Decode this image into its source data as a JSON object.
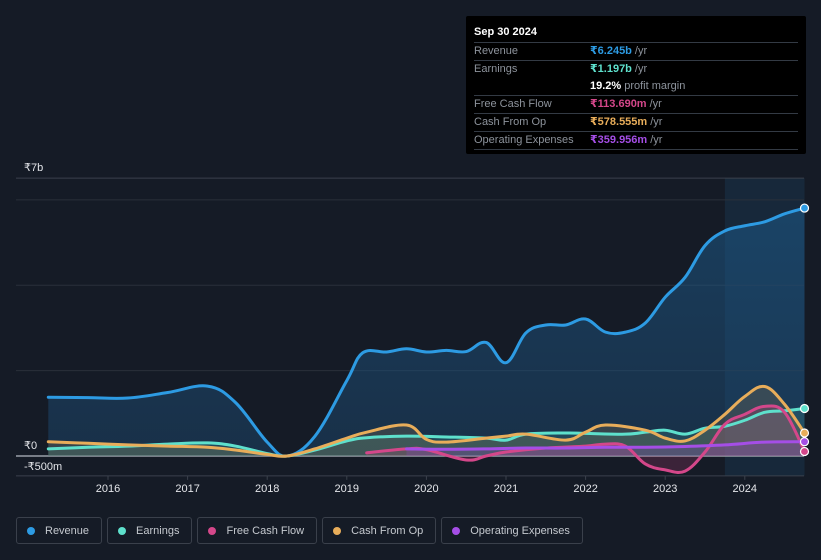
{
  "tooltip": {
    "date": "Sep 30 2024",
    "rows": [
      {
        "label": "Revenue",
        "value": "₹6.245b",
        "unit": "/yr",
        "color": "#2d9be3"
      },
      {
        "label": "Earnings",
        "value": "₹1.197b",
        "unit": "/yr",
        "color": "#5ee0cc"
      },
      {
        "label": "",
        "value": "19.2%",
        "unit": "profit margin",
        "color": "#ffffff"
      },
      {
        "label": "Free Cash Flow",
        "value": "₹113.690m",
        "unit": "/yr",
        "color": "#d4478a"
      },
      {
        "label": "Cash From Op",
        "value": "₹578.555m",
        "unit": "/yr",
        "color": "#e8ad5a"
      },
      {
        "label": "Operating Expenses",
        "value": "₹359.956m",
        "unit": "/yr",
        "color": "#a54ee6"
      }
    ]
  },
  "legend": [
    {
      "label": "Revenue",
      "color": "#2d9be3"
    },
    {
      "label": "Earnings",
      "color": "#5ee0cc"
    },
    {
      "label": "Free Cash Flow",
      "color": "#d4478a"
    },
    {
      "label": "Cash From Op",
      "color": "#e8ad5a"
    },
    {
      "label": "Operating Expenses",
      "color": "#a54ee6"
    }
  ],
  "chart_data": {
    "type": "area",
    "title": "",
    "xlabel": "",
    "ylabel": "",
    "units": "₹ billions",
    "ylim": [
      -0.5,
      7
    ],
    "xlim": [
      2015.25,
      2024.75
    ],
    "y_ticks": [
      {
        "value": 7,
        "label": "₹7b"
      },
      {
        "value": 0,
        "label": "₹0"
      },
      {
        "value": -0.5,
        "label": "-₹500m"
      }
    ],
    "x_ticks": [
      2016,
      2017,
      2018,
      2019,
      2020,
      2021,
      2022,
      2023,
      2024
    ],
    "grid": true,
    "highlight_start": 2023.75,
    "legend_position": "bottom",
    "series": [
      {
        "name": "Revenue",
        "color": "#2d9be3",
        "x": [
          2015.25,
          2015.75,
          2016.25,
          2016.75,
          2017.25,
          2017.6,
          2018.0,
          2018.25,
          2018.6,
          2019.0,
          2019.2,
          2019.5,
          2019.75,
          2020.0,
          2020.25,
          2020.5,
          2020.75,
          2021.0,
          2021.25,
          2021.5,
          2021.75,
          2022.0,
          2022.25,
          2022.5,
          2022.75,
          2023.0,
          2023.25,
          2023.5,
          2023.75,
          2024.0,
          2024.25,
          2024.5,
          2024.75
        ],
        "values": [
          1.48,
          1.47,
          1.46,
          1.6,
          1.76,
          1.35,
          0.35,
          0.0,
          0.5,
          1.9,
          2.6,
          2.62,
          2.7,
          2.62,
          2.66,
          2.63,
          2.86,
          2.35,
          3.1,
          3.3,
          3.3,
          3.45,
          3.12,
          3.12,
          3.35,
          4.0,
          4.5,
          5.3,
          5.67,
          5.8,
          5.9,
          6.1,
          6.245
        ]
      },
      {
        "name": "Earnings",
        "color": "#5ee0cc",
        "x": [
          2015.25,
          2015.75,
          2016.25,
          2016.75,
          2017.25,
          2017.6,
          2018.0,
          2018.25,
          2018.6,
          2019.0,
          2019.25,
          2019.75,
          2020.25,
          2020.75,
          2021.0,
          2021.25,
          2021.75,
          2022.0,
          2022.5,
          2022.75,
          2023.0,
          2023.25,
          2023.5,
          2023.75,
          2024.0,
          2024.25,
          2024.5,
          2024.75
        ],
        "values": [
          0.18,
          0.22,
          0.25,
          0.3,
          0.33,
          0.25,
          0.06,
          0.0,
          0.15,
          0.38,
          0.46,
          0.5,
          0.48,
          0.45,
          0.4,
          0.55,
          0.58,
          0.57,
          0.55,
          0.6,
          0.65,
          0.55,
          0.7,
          0.75,
          0.9,
          1.1,
          1.14,
          1.197
        ]
      },
      {
        "name": "Free Cash Flow",
        "color": "#d4478a",
        "x": [
          2019.25,
          2019.75,
          2020.0,
          2020.5,
          2020.75,
          2021.0,
          2021.5,
          2022.0,
          2022.25,
          2022.5,
          2022.75,
          2023.0,
          2023.25,
          2023.5,
          2023.75,
          2024.0,
          2024.25,
          2024.5,
          2024.75
        ],
        "values": [
          0.08,
          0.18,
          0.16,
          -0.1,
          0.0,
          0.1,
          0.2,
          0.25,
          0.3,
          0.25,
          -0.2,
          -0.35,
          -0.38,
          0.1,
          0.8,
          1.05,
          1.25,
          1.1,
          0.114
        ]
      },
      {
        "name": "Cash From Op",
        "color": "#e8ad5a",
        "x": [
          2015.25,
          2015.75,
          2016.25,
          2016.75,
          2017.25,
          2017.6,
          2018.0,
          2018.25,
          2018.6,
          2019.0,
          2019.25,
          2019.75,
          2020.0,
          2020.25,
          2020.75,
          2021.0,
          2021.25,
          2021.75,
          2022.0,
          2022.25,
          2022.75,
          2023.0,
          2023.25,
          2023.5,
          2023.75,
          2024.0,
          2024.25,
          2024.5,
          2024.75
        ],
        "values": [
          0.36,
          0.32,
          0.28,
          0.25,
          0.22,
          0.15,
          0.04,
          0.0,
          0.18,
          0.45,
          0.6,
          0.78,
          0.42,
          0.35,
          0.45,
          0.5,
          0.55,
          0.4,
          0.6,
          0.78,
          0.65,
          0.45,
          0.38,
          0.65,
          1.05,
          1.5,
          1.75,
          1.3,
          0.579
        ]
      },
      {
        "name": "Operating Expenses",
        "color": "#a54ee6",
        "x": [
          2019.75,
          2020.25,
          2020.75,
          2021.25,
          2021.75,
          2022.25,
          2022.75,
          2023.25,
          2023.75,
          2024.25,
          2024.75
        ],
        "values": [
          0.18,
          0.17,
          0.18,
          0.2,
          0.2,
          0.22,
          0.22,
          0.24,
          0.28,
          0.35,
          0.36
        ]
      }
    ]
  }
}
